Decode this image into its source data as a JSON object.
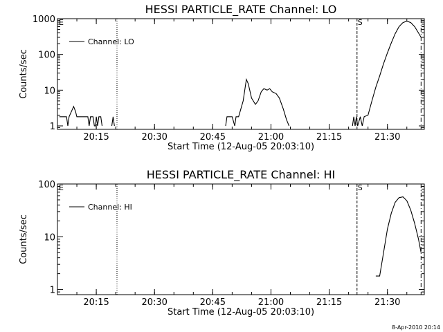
{
  "footer_date": "8-Apr-2010 20:14",
  "chart_data": [
    {
      "type": "line",
      "title": "HESSI PARTICLE_RATE Channel: LO",
      "xlabel": "Start Time (12-Aug-05 20:03:10)",
      "ylabel": "Counts/sec",
      "y_scale": "log",
      "xlim": [
        "20:05:00",
        "21:39:30"
      ],
      "ylim": [
        0.8,
        1000
      ],
      "x_ticks": [
        "20:15",
        "20:30",
        "20:45",
        "21:00",
        "21:15",
        "21:30"
      ],
      "y_ticks": [
        "1",
        "10",
        "100",
        "1000"
      ],
      "legend": {
        "label": "Channel: LO",
        "position": "top-left"
      },
      "markers": [
        {
          "label": "E",
          "time": "20:03:10",
          "style": "dotted"
        },
        {
          "label": "",
          "time": "20:20:20",
          "style": "dotted"
        },
        {
          "label": "S",
          "time": "21:22:10",
          "style": "dashed"
        },
        {
          "label": "",
          "time": "21:38:40",
          "style": "dashdot"
        }
      ],
      "segments": [
        [
          [
            "20:05:30",
            1.8
          ],
          [
            "20:07:20",
            1.8
          ],
          [
            "20:07:40",
            1.0
          ],
          [
            "20:08:00",
            1.8
          ],
          [
            "20:09:10",
            3.5
          ],
          [
            "20:09:40",
            2.5
          ],
          [
            "20:10:00",
            1.8
          ],
          [
            "20:12:50",
            1.8
          ],
          [
            "20:13:10",
            1.0
          ],
          [
            "20:13:30",
            1.8
          ],
          [
            "20:14:10",
            1.8
          ],
          [
            "20:14:30",
            1.0
          ],
          [
            "20:14:50",
            1.0
          ],
          [
            "20:15:00",
            1.8
          ],
          [
            "20:15:20",
            1.0
          ],
          [
            "20:15:40",
            1.8
          ],
          [
            "20:16:10",
            1.8
          ],
          [
            "20:16:30",
            1.0
          ]
        ],
        [
          [
            "20:19:00",
            1.0
          ],
          [
            "20:19:20",
            1.8
          ],
          [
            "20:19:40",
            1.0
          ]
        ],
        [
          [
            "20:48:20",
            1.0
          ],
          [
            "20:48:40",
            1.8
          ],
          [
            "20:50:00",
            1.8
          ],
          [
            "20:50:40",
            1.0
          ],
          [
            "20:51:00",
            1.8
          ],
          [
            "20:51:40",
            1.8
          ],
          [
            "20:52:50",
            5.0
          ],
          [
            "20:53:40",
            20.0
          ],
          [
            "20:54:10",
            15.0
          ],
          [
            "20:55:00",
            6.0
          ],
          [
            "20:56:00",
            4.0
          ],
          [
            "20:56:40",
            5.0
          ],
          [
            "20:57:30",
            9.0
          ],
          [
            "20:58:10",
            11.0
          ],
          [
            "20:59:00",
            10.0
          ],
          [
            "20:59:40",
            11.0
          ],
          [
            "21:00:20",
            9.0
          ],
          [
            "21:01:20",
            8.0
          ],
          [
            "21:02:10",
            6.0
          ],
          [
            "21:03:10",
            3.0
          ],
          [
            "21:04:00",
            1.5
          ],
          [
            "21:04:40",
            1.0
          ]
        ],
        [
          [
            "21:21:00",
            1.0
          ],
          [
            "21:21:20",
            1.8
          ],
          [
            "21:21:40",
            1.0
          ],
          [
            "21:22:00",
            1.8
          ],
          [
            "21:22:20",
            1.0
          ],
          [
            "21:23:00",
            1.8
          ],
          [
            "21:23:30",
            1.0
          ],
          [
            "21:24:00",
            1.8
          ],
          [
            "21:25:00",
            2.0
          ],
          [
            "21:26:00",
            5.0
          ],
          [
            "21:27:00",
            12.0
          ],
          [
            "21:28:00",
            25.0
          ],
          [
            "21:29:00",
            55.0
          ],
          [
            "21:30:00",
            110.0
          ],
          [
            "21:31:00",
            210.0
          ],
          [
            "21:32:00",
            380.0
          ],
          [
            "21:33:00",
            600.0
          ],
          [
            "21:34:00",
            780.0
          ],
          [
            "21:35:00",
            850.0
          ],
          [
            "21:36:00",
            780.0
          ],
          [
            "21:37:00",
            600.0
          ],
          [
            "21:38:00",
            400.0
          ],
          [
            "21:38:40",
            300.0
          ]
        ]
      ]
    },
    {
      "type": "line",
      "title": "HESSI PARTICLE_RATE Channel: HI",
      "xlabel": "Start Time (12-Aug-05 20:03:10)",
      "ylabel": "Counts/sec",
      "y_scale": "log",
      "xlim": [
        "20:05:00",
        "21:39:30"
      ],
      "ylim": [
        0.8,
        100
      ],
      "x_ticks": [
        "20:15",
        "20:30",
        "20:45",
        "21:00",
        "21:15",
        "21:30"
      ],
      "y_ticks": [
        "1",
        "10",
        "100"
      ],
      "legend": {
        "label": "Channel: HI",
        "position": "top-left"
      },
      "markers": [
        {
          "label": "E",
          "time": "20:03:10",
          "style": "dotted"
        },
        {
          "label": "",
          "time": "20:20:20",
          "style": "dotted"
        },
        {
          "label": "S",
          "time": "21:22:10",
          "style": "dashed"
        },
        {
          "label": "",
          "time": "21:38:40",
          "style": "dashdot"
        }
      ],
      "segments": [
        [
          [
            "21:27:00",
            1.8
          ],
          [
            "21:28:00",
            1.8
          ],
          [
            "21:29:00",
            5.0
          ],
          [
            "21:30:00",
            14.0
          ],
          [
            "21:31:00",
            28.0
          ],
          [
            "21:32:00",
            45.0
          ],
          [
            "21:33:00",
            55.0
          ],
          [
            "21:34:00",
            57.0
          ],
          [
            "21:35:00",
            48.0
          ],
          [
            "21:36:00",
            32.0
          ],
          [
            "21:37:00",
            18.0
          ],
          [
            "21:38:00",
            9.0
          ],
          [
            "21:38:40",
            5.0
          ]
        ]
      ]
    }
  ]
}
